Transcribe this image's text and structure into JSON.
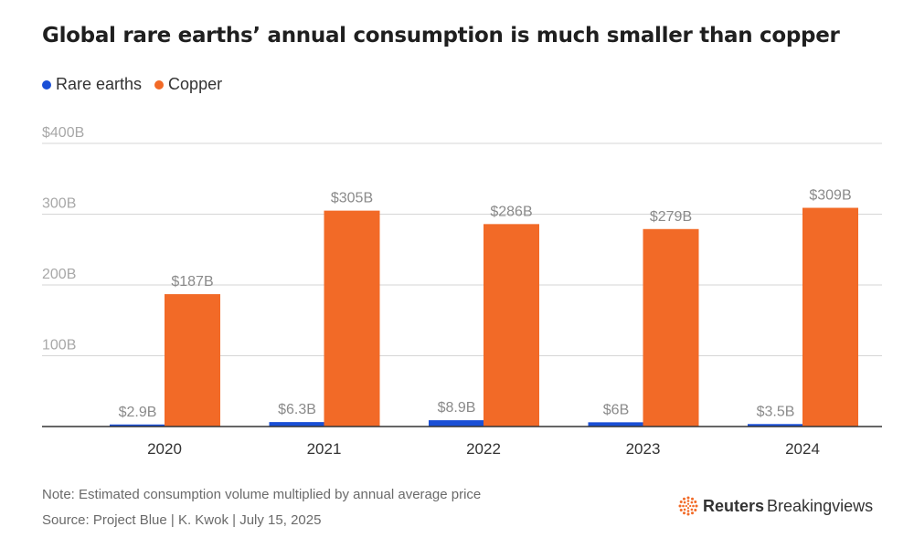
{
  "title": "Global rare earths’ annual consumption is much smaller than copper",
  "legend": [
    {
      "label": "Rare earths",
      "color": "#1a4fd6"
    },
    {
      "label": "Copper",
      "color": "#f26a27"
    }
  ],
  "chart_data": {
    "type": "bar",
    "categories": [
      "2020",
      "2021",
      "2022",
      "2023",
      "2024"
    ],
    "series": [
      {
        "name": "Rare earths",
        "color": "#1a4fd6",
        "values": [
          2.9,
          6.3,
          8.9,
          6,
          3.5
        ],
        "labels": [
          "$2.9B",
          "$6.3B",
          "$8.9B",
          "$6B",
          "$3.5B"
        ]
      },
      {
        "name": "Copper",
        "color": "#f26a27",
        "values": [
          187,
          305,
          286,
          279,
          309
        ],
        "labels": [
          "$187B",
          "$305B",
          "$286B",
          "$279B",
          "$309B"
        ]
      }
    ],
    "yticks": [
      {
        "value": 100,
        "label": "100B"
      },
      {
        "value": 200,
        "label": "200B"
      },
      {
        "value": 300,
        "label": "300B"
      },
      {
        "value": 400,
        "label": "$400B"
      }
    ],
    "ylim": [
      0,
      400
    ],
    "grid": true,
    "legend_position": "top-left"
  },
  "note": "Note: Estimated consumption volume multiplied by annual average price",
  "source": "Source: Project Blue | K. Kwok | July 15, 2025",
  "logo": {
    "brand": "Reuters",
    "product": "Breakingviews",
    "color": "#f26a27"
  }
}
